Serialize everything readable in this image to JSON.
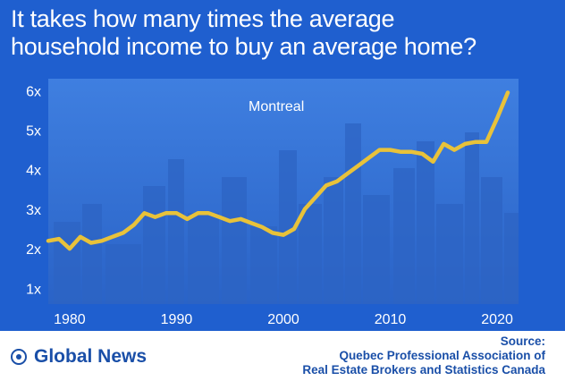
{
  "title_line1": "It takes how many times the average",
  "title_line2": "household income to buy an average home?",
  "brand": "Global News",
  "source": {
    "heading": "Source:",
    "line1": "Quebec Professional Association of",
    "line2": "Real Estate Brokers and Statistics Canada"
  },
  "colors": {
    "background": "#1f5fcf",
    "plot_background": "#3b78dc",
    "line": "#e8c23a",
    "text": "#ffffff",
    "footer_text": "#1a4fa8"
  },
  "chart_data": {
    "type": "line",
    "title": "It takes how many times the average household income to buy an average home?",
    "xlabel": "",
    "ylabel": "",
    "xlim": [
      1978,
      2022
    ],
    "ylim": [
      0.6,
      6.3
    ],
    "x_ticks": [
      1980,
      1990,
      2000,
      2010,
      2020
    ],
    "y_ticks": [
      1,
      2,
      3,
      4,
      5,
      6
    ],
    "y_tick_labels": [
      "1x",
      "2x",
      "3x",
      "4x",
      "5x",
      "6x"
    ],
    "grid": false,
    "legend": "none",
    "series": [
      {
        "name": "Montreal",
        "x": [
          1978,
          1979,
          1980,
          1981,
          1982,
          1983,
          1984,
          1985,
          1986,
          1987,
          1988,
          1989,
          1990,
          1991,
          1992,
          1993,
          1994,
          1995,
          1996,
          1997,
          1998,
          1999,
          2000,
          2001,
          2002,
          2003,
          2004,
          2005,
          2006,
          2007,
          2008,
          2009,
          2010,
          2011,
          2012,
          2013,
          2014,
          2015,
          2016,
          2017,
          2018,
          2019,
          2020,
          2021
        ],
        "y": [
          2.2,
          2.25,
          2.0,
          2.3,
          2.15,
          2.2,
          2.3,
          2.4,
          2.6,
          2.9,
          2.8,
          2.9,
          2.9,
          2.75,
          2.9,
          2.9,
          2.8,
          2.7,
          2.75,
          2.65,
          2.55,
          2.4,
          2.35,
          2.5,
          3.0,
          3.3,
          3.6,
          3.7,
          3.9,
          4.1,
          4.3,
          4.5,
          4.5,
          4.45,
          4.45,
          4.4,
          4.2,
          4.65,
          4.5,
          4.65,
          4.7,
          4.7,
          5.3,
          5.95
        ]
      }
    ]
  }
}
